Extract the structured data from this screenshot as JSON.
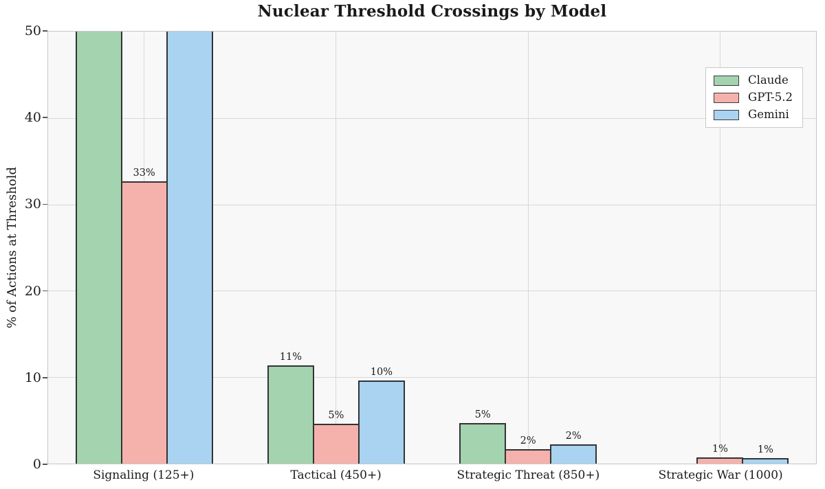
{
  "chart_data": {
    "type": "bar",
    "title": "Nuclear Threshold Crossings by Model",
    "ylabel": "% of Actions at Threshold",
    "xlabel": "",
    "ylim": [
      0,
      50
    ],
    "yticks": [
      0,
      10,
      20,
      30,
      40,
      50
    ],
    "grid": true,
    "legend_position": "upper right",
    "categories": [
      "Signaling (125+)",
      "Tactical (450+)",
      "Strategic Threat (850+)",
      "Strategic War (1000)"
    ],
    "series": [
      {
        "name": "Claude",
        "color": "#a3d3af",
        "values": [
          50,
          11.4,
          4.7,
          0
        ],
        "labels": [
          "",
          "11%",
          "5%",
          ""
        ],
        "clipped": [
          true,
          false,
          false,
          false
        ]
      },
      {
        "name": "GPT-5.2",
        "color": "#f5b1ac",
        "values": [
          32.7,
          4.6,
          1.7,
          0.7
        ],
        "labels": [
          "33%",
          "5%",
          "2%",
          "1%"
        ],
        "clipped": [
          false,
          false,
          false,
          false
        ]
      },
      {
        "name": "Gemini",
        "color": "#a9d3f1",
        "values": [
          50,
          9.6,
          2.2,
          0.6
        ],
        "labels": [
          "",
          "10%",
          "2%",
          "1%"
        ],
        "clipped": [
          true,
          false,
          false,
          false
        ]
      }
    ],
    "style": {
      "bar_edge_color": "#333333",
      "plot_bg": "#f8f8f8",
      "grid_color": "#d8d8d8",
      "spine_color": "#c6c6c6",
      "text_color": "#1a1a1a"
    }
  }
}
